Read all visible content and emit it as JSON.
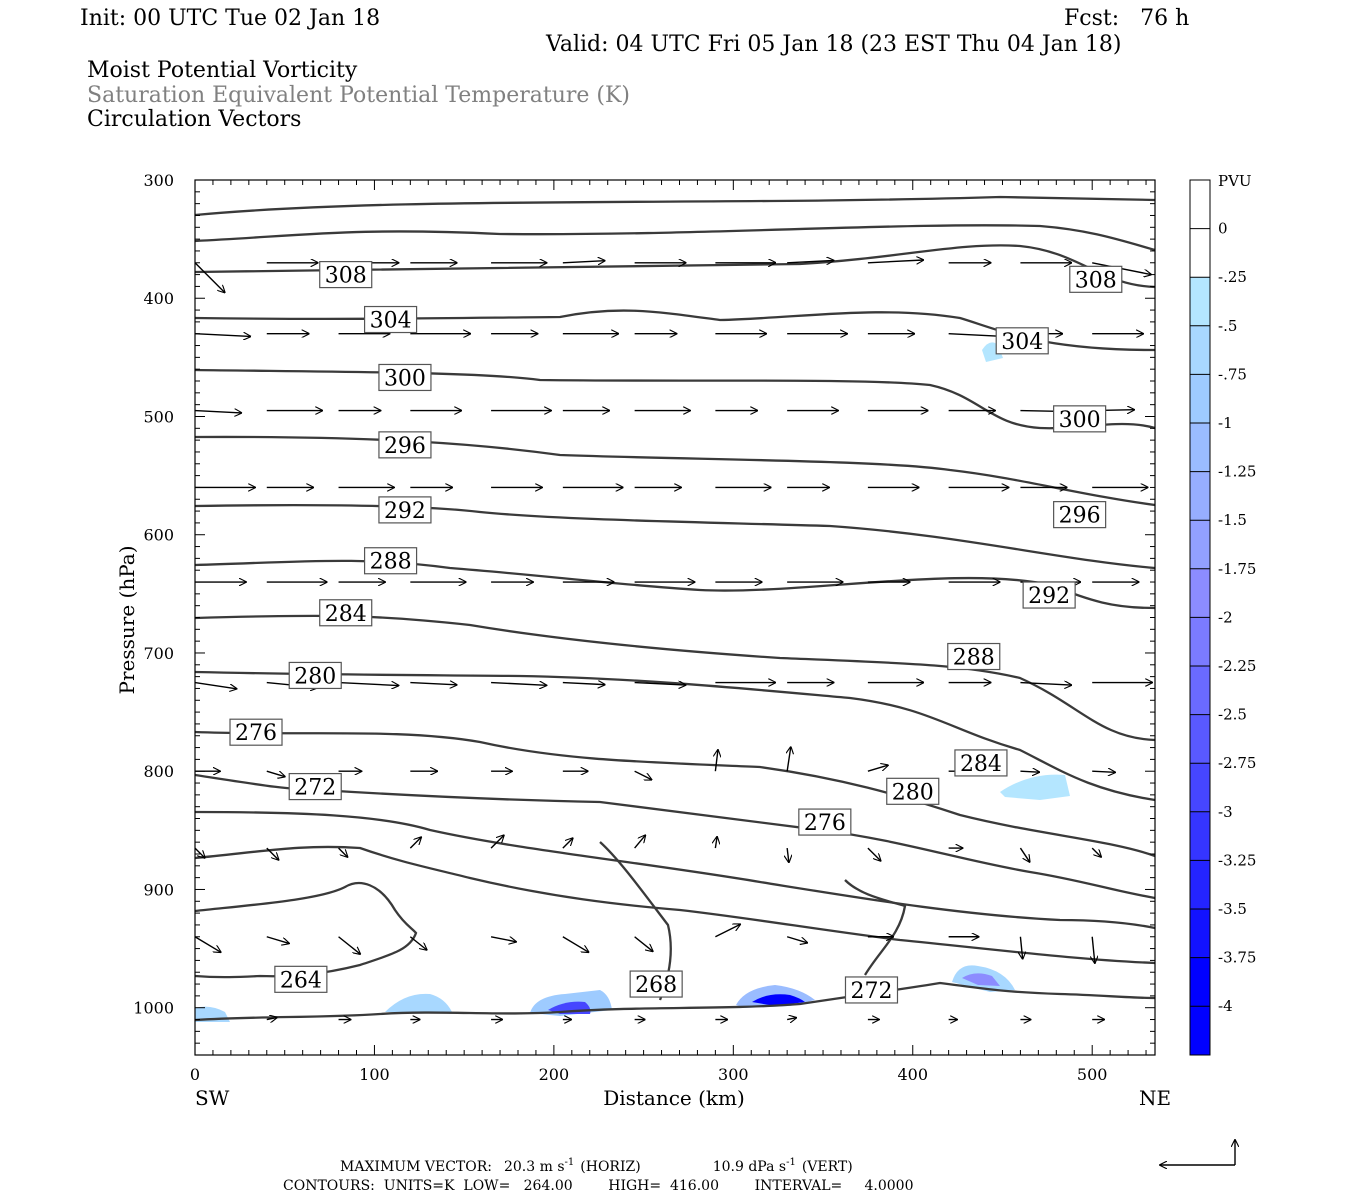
{
  "header": {
    "init": "Init: 00 UTC Tue 02 Jan 18",
    "fcst": "Fcst:   76 h",
    "valid": "Valid: 04 UTC Fri 05 Jan 18 (23 EST Thu 04 Jan 18)",
    "line1": "Moist Potential Vorticity",
    "line2": "Saturation Equivalent Potential Temperature (K)",
    "line3": "Circulation Vectors"
  },
  "footer": {
    "max_vector_label": "MAXIMUM VECTOR:",
    "max_horiz": "20.3 m s",
    "horiz_tag": "(HORIZ)",
    "max_vert": "10.9 dPa s",
    "vert_tag": "(VERT)",
    "contours": "CONTOURS:  UNITS=K  LOW=   264.00        HIGH=  416.00        INTERVAL=     4.0000"
  },
  "chart_data": {
    "type": "contour",
    "xlabel": "Distance (km)",
    "ylabel": "Pressure (hPa)",
    "x_left_label": "SW",
    "x_right_label": "NE",
    "xlim": [
      0,
      535
    ],
    "ylim": [
      300,
      1040
    ],
    "y_inverted": true,
    "x_ticks": [
      0,
      100,
      200,
      300,
      400,
      500
    ],
    "y_ticks": [
      300,
      400,
      500,
      600,
      700,
      800,
      900,
      1000
    ],
    "colorbar": {
      "unit": "PVU",
      "levels": [
        "0",
        "-.25",
        "-.5",
        "-.75",
        "-1",
        "-1.25",
        "-1.5",
        "-1.75",
        "-2",
        "-2.25",
        "-2.5",
        "-2.75",
        "-3",
        "-3.25",
        "-3.5",
        "-3.75",
        "-4"
      ],
      "colors": [
        "#ffffff",
        "#ffffff",
        "#b4e6ff",
        "#a8d8ff",
        "#9ecbff",
        "#9abcff",
        "#96aeff",
        "#92a0ff",
        "#8c8cff",
        "#7b7bff",
        "#6a6aff",
        "#5959ff",
        "#4646ff",
        "#3535ff",
        "#2424ff",
        "#1212ff",
        "#0000ff"
      ]
    },
    "contour_labels": [
      {
        "value": "308",
        "x": 84,
        "p": 380
      },
      {
        "value": "308",
        "x": 502,
        "p": 384
      },
      {
        "value": "304",
        "x": 109,
        "p": 418
      },
      {
        "value": "304",
        "x": 461,
        "p": 436
      },
      {
        "value": "300",
        "x": 117,
        "p": 467
      },
      {
        "value": "300",
        "x": 493,
        "p": 502
      },
      {
        "value": "296",
        "x": 117,
        "p": 524
      },
      {
        "value": "296",
        "x": 493,
        "p": 583
      },
      {
        "value": "292",
        "x": 117,
        "p": 579
      },
      {
        "value": "292",
        "x": 476,
        "p": 651
      },
      {
        "value": "288",
        "x": 109,
        "p": 622
      },
      {
        "value": "288",
        "x": 434,
        "p": 703
      },
      {
        "value": "284",
        "x": 84,
        "p": 666
      },
      {
        "value": "284",
        "x": 438,
        "p": 793
      },
      {
        "value": "280",
        "x": 67,
        "p": 719
      },
      {
        "value": "280",
        "x": 400,
        "p": 817
      },
      {
        "value": "276",
        "x": 34,
        "p": 767
      },
      {
        "value": "276",
        "x": 351,
        "p": 843
      },
      {
        "value": "272",
        "x": 67,
        "p": 813
      },
      {
        "value": "272",
        "x": 377,
        "p": 985
      },
      {
        "value": "268",
        "x": 257,
        "p": 980
      },
      {
        "value": "264",
        "x": 59,
        "p": 976
      }
    ]
  }
}
